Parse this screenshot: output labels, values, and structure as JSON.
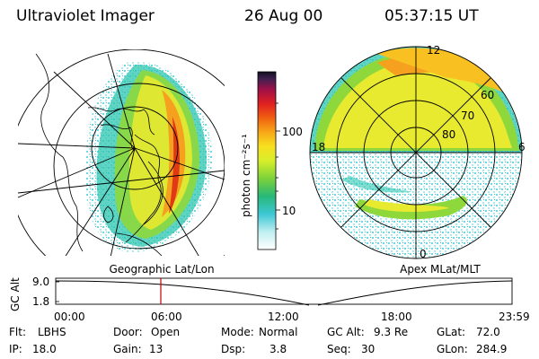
{
  "header": {
    "title": "Ultraviolet Imager",
    "date": "26 Aug 00",
    "time": "05:37:15 UT"
  },
  "panels": {
    "left_caption": "Geographic Lat/Lon",
    "right_caption": "Apex MLat/MLT",
    "right_mlt_labels": {
      "top": "12",
      "left": "18",
      "right": "6",
      "bottom": "0"
    },
    "right_mlat_labels": [
      "60",
      "70",
      "80"
    ]
  },
  "colorbar": {
    "unit_label": "photon cm⁻²s⁻¹",
    "ticks": [
      "100",
      "10"
    ]
  },
  "gc_alt_plot": {
    "axis_label": "GC Alt",
    "y_ticks": [
      "9.0",
      "1.8"
    ],
    "x_ticks": [
      "00:00",
      "06:00",
      "12:00",
      "18:00",
      "23:59"
    ],
    "marker_color": "#c00000"
  },
  "info": {
    "flt_label": "Flt:",
    "flt_value": "LBHS",
    "ip_label": "IP:",
    "ip_value": "18.0",
    "door_label": "Door:",
    "door_value": "Open",
    "gain_label": "Gain:",
    "gain_value": "13",
    "mode_label": "Mode:",
    "mode_value": "Normal",
    "dsp_label": "Dsp:",
    "dsp_value": "3.8",
    "gcalt_label": "GC Alt:",
    "gcalt_value": "9.3 Re",
    "seq_label": "Seq:",
    "seq_value": "30",
    "glat_label": "GLat:",
    "glat_value": "72.0",
    "glon_label": "GLon:",
    "glon_value": "284.9"
  }
}
